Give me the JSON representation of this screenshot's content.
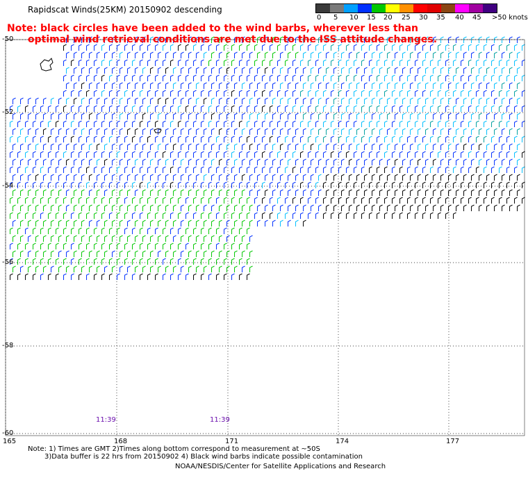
{
  "title": "Rapidscat Winds(25KM) 20150902 descending",
  "note": {
    "line1": "Note: black circles have been added to the wind barbs, wherever less than",
    "line2": "optimal wind retrieval conditions are met due to the ISS attitude changes."
  },
  "colorbar": {
    "colors": [
      "#3a3a3a",
      "#7a7a7a",
      "#00a0ff",
      "#0030ff",
      "#00c800",
      "#ffff00",
      "#ff9000",
      "#ff0000",
      "#e00000",
      "#8b4513",
      "#ff00ff",
      "#a000a0",
      "#400080"
    ],
    "labels": [
      "0",
      "5",
      "10",
      "15",
      "20",
      "25",
      "30",
      "35",
      "40",
      "45",
      ">50 knots"
    ]
  },
  "lat_labels": [
    "-50",
    "-52",
    "-54",
    "-56",
    "-58",
    "-60"
  ],
  "lon_labels": [
    "165",
    "168",
    "171",
    "174",
    "177"
  ],
  "time_labels": [
    "11:39",
    "11:39"
  ],
  "footnote": {
    "line1": "Note: 1) Times are GMT 2)Times along bottom correspond to measurement at ~50S",
    "line2": "3)Data buffer is 22 hrs from 20150902 4) Black wind barbs indicate possible contamination"
  },
  "credit": "NOAA/NESDIS/Center for Satellite Applications and Research"
}
